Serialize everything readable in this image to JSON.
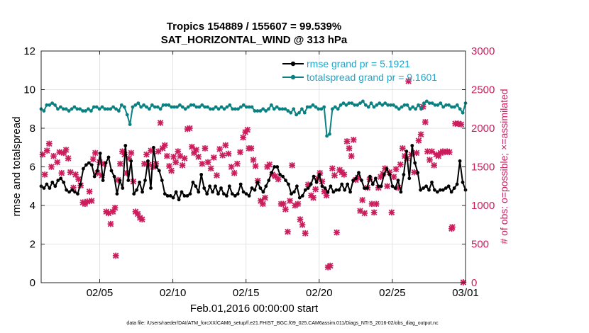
{
  "chart_data": {
    "type": "line",
    "title_line1": "Tropics 154889 / 155607 = 99.539%",
    "title_line2": "SAT_HORIZONTAL_WIND @ 313 hPa",
    "xlabel": "Feb.01,2016 00:00:00 start",
    "ylabel_left": "rmse and totalspread",
    "ylabel_right": "# of obs: o=possible; ×=assimilated",
    "footer": "data file: /Users/raeder/DAI/ATM_forcXX/CAM6_setup/f.e21.FHIST_BGC.f09_025.CAM6assim.011/Diags_NTrS_2016-02/obs_diag_output.nc",
    "xlim_days": [
      1,
      30
    ],
    "x_ticks": [
      {
        "day": 5,
        "label": "02/05"
      },
      {
        "day": 10,
        "label": "02/10"
      },
      {
        "day": 15,
        "label": "02/15"
      },
      {
        "day": 20,
        "label": "02/20"
      },
      {
        "day": 25,
        "label": "02/25"
      },
      {
        "day": 30,
        "label": "03/01"
      }
    ],
    "ylim_left": [
      0,
      12
    ],
    "y_ticks_left": [
      "0",
      "2",
      "4",
      "6",
      "8",
      "10",
      "12"
    ],
    "ylim_right": [
      0,
      3000
    ],
    "y_ticks_right": [
      "0",
      "500",
      "1000",
      "1500",
      "2000",
      "2500",
      "3000"
    ],
    "colors": {
      "rmse": "#000000",
      "spread": "#0a8080",
      "obs": "#cc1c5c",
      "legend_text": "#1ea6c8"
    },
    "legend": [
      {
        "name": "rmse grand pr = 5.1921",
        "series": "rmse"
      },
      {
        "name": "totalspread grand pr = 9.1601",
        "series": "spread"
      }
    ],
    "rmse": [
      5.0,
      4.9,
      5.1,
      4.9,
      5.2,
      5.0,
      5.3,
      5.4,
      5.2,
      4.8,
      4.7,
      4.8,
      4.7,
      4.6,
      5.1,
      5.9,
      6.1,
      6.2,
      6.1,
      5.5,
      5.8,
      6.7,
      5.3,
      6.2,
      6.5,
      5.8,
      5.5,
      4.6,
      5.3,
      4.9,
      7.1,
      5.3,
      6.3,
      4.6,
      4.8,
      5.2,
      4.7,
      5.3,
      6.3,
      4.9,
      7.0,
      6.0,
      5.8,
      5.3,
      4.6,
      4.5,
      4.5,
      4.4,
      4.7,
      4.3,
      4.7,
      4.5,
      4.5,
      4.6,
      5.2,
      5.0,
      4.7,
      5.6,
      4.9,
      4.6,
      5.0,
      4.7,
      5.0,
      4.6,
      4.9,
      4.6,
      4.5,
      5.0,
      4.6,
      4.5,
      4.6,
      5.1,
      4.7,
      4.6,
      4.5,
      4.9,
      4.8,
      5.2,
      4.9,
      4.7,
      5.0,
      5.3,
      5.7,
      6.0,
      6.0,
      5.6,
      5.5,
      5.3,
      5.1,
      4.6,
      4.7,
      5.0,
      4.4,
      4.5,
      4.8,
      4.9,
      5.1,
      5.5,
      5.2,
      5.6,
      5.0,
      4.9,
      4.7,
      5.0,
      4.7,
      4.8,
      4.8,
      5.1,
      4.8,
      5.1,
      4.7,
      5.3,
      5.4,
      5.7,
      5.3,
      4.9,
      4.9,
      5.5,
      5.1,
      5.4,
      5.0,
      5.0,
      5.6,
      5.9,
      5.6,
      5.0,
      4.9,
      5.3,
      4.7,
      5.6,
      6.8,
      5.4,
      7.1,
      6.2,
      5.7,
      4.8,
      4.9,
      5.0,
      4.8,
      5.2,
      4.8,
      4.7,
      4.8,
      4.8,
      4.9,
      5.0,
      4.7,
      4.9,
      5.1,
      6.3,
      5.2,
      4.8
    ],
    "spread": [
      9.0,
      8.9,
      9.2,
      9.2,
      9.3,
      9.2,
      9.0,
      9.1,
      9.0,
      9.0,
      8.9,
      9.0,
      9.1,
      9.0,
      9.0,
      8.9,
      8.9,
      9.0,
      8.9,
      9.1,
      9.1,
      9.0,
      9.1,
      9.0,
      9.0,
      9.0,
      9.1,
      9.0,
      8.9,
      9.2,
      9.1,
      8.7,
      8.2,
      9.1,
      9.2,
      9.3,
      9.1,
      9.2,
      9.1,
      9.0,
      9.2,
      9.1,
      9.1,
      9.0,
      9.2,
      9.2,
      9.2,
      9.1,
      9.1,
      9.1,
      9.2,
      9.1,
      9.0,
      9.1,
      9.2,
      9.2,
      9.1,
      9.1,
      9.2,
      9.1,
      9.1,
      9.0,
      9.0,
      9.1,
      9.0,
      9.1,
      9.0,
      9.1,
      9.2,
      9.0,
      9.0,
      9.0,
      9.1,
      9.2,
      9.1,
      9.1,
      9.1,
      8.9,
      8.9,
      8.9,
      9.0,
      8.9,
      9.0,
      9.2,
      9.0,
      9.1,
      9.0,
      9.0,
      9.0,
      8.9,
      8.8,
      9.0,
      8.7,
      8.8,
      9.0,
      8.8,
      9.1,
      9.1,
      9.2,
      9.1,
      9.0,
      9.0,
      9.1,
      7.6,
      7.7,
      9.0,
      9.1,
      9.0,
      9.2,
      9.3,
      9.2,
      9.3,
      9.3,
      9.2,
      9.2,
      9.3,
      9.4,
      9.2,
      9.1,
      9.3,
      9.1,
      9.2,
      9.3,
      9.2,
      9.3,
      9.2,
      9.2,
      9.2,
      9.1,
      9.0,
      9.1,
      9.2,
      9.2,
      9.0,
      9.1,
      9.0,
      9.2,
      9.0,
      9.3,
      9.4,
      9.3,
      9.3,
      9.2,
      9.2,
      9.3,
      9.1,
      9.2,
      9.2,
      9.1,
      9.1,
      9.2,
      9.0,
      8.8,
      9.3
    ],
    "obs_assimilated": [
      {
        "day": 1.1,
        "n": 1660
      },
      {
        "day": 1.25,
        "n": 1400
      },
      {
        "day": 1.4,
        "n": 1710
      },
      {
        "day": 1.55,
        "n": 1800
      },
      {
        "day": 1.7,
        "n": 1500
      },
      {
        "day": 1.85,
        "n": 1640
      },
      {
        "day": 2.1,
        "n": 1560
      },
      {
        "day": 2.25,
        "n": 1690
      },
      {
        "day": 2.4,
        "n": 1420
      },
      {
        "day": 2.55,
        "n": 1680
      },
      {
        "day": 2.7,
        "n": 1720
      },
      {
        "day": 2.85,
        "n": 1610
      },
      {
        "day": 3.0,
        "n": 1430
      },
      {
        "day": 3.2,
        "n": 1230
      },
      {
        "day": 3.35,
        "n": 1400
      },
      {
        "day": 3.55,
        "n": 1340
      },
      {
        "day": 3.7,
        "n": 1260
      },
      {
        "day": 3.85,
        "n": 1040
      },
      {
        "day": 4.0,
        "n": 1020
      },
      {
        "day": 4.15,
        "n": 1050
      },
      {
        "day": 4.3,
        "n": 1180
      },
      {
        "day": 4.45,
        "n": 1060
      },
      {
        "day": 4.55,
        "n": 1600
      },
      {
        "day": 4.7,
        "n": 1680
      },
      {
        "day": 4.85,
        "n": 1420
      },
      {
        "day": 5.0,
        "n": 1560
      },
      {
        "day": 5.15,
        "n": 1390
      },
      {
        "day": 5.3,
        "n": 1540
      },
      {
        "day": 5.45,
        "n": 920
      },
      {
        "day": 5.6,
        "n": 900
      },
      {
        "day": 5.75,
        "n": 760
      },
      {
        "day": 5.9,
        "n": 920
      },
      {
        "day": 6.05,
        "n": 970
      },
      {
        "day": 6.1,
        "n": 350
      },
      {
        "day": 6.25,
        "n": 1330
      },
      {
        "day": 6.4,
        "n": 1540
      },
      {
        "day": 6.55,
        "n": 1700
      },
      {
        "day": 6.7,
        "n": 1660
      },
      {
        "day": 6.85,
        "n": 1420
      },
      {
        "day": 7.0,
        "n": 1610
      },
      {
        "day": 7.15,
        "n": 1680
      },
      {
        "day": 7.3,
        "n": 1310
      },
      {
        "day": 7.45,
        "n": 920
      },
      {
        "day": 7.6,
        "n": 890
      },
      {
        "day": 7.75,
        "n": 840
      },
      {
        "day": 7.9,
        "n": 820
      },
      {
        "day": 8.05,
        "n": 1540
      },
      {
        "day": 8.2,
        "n": 1660
      },
      {
        "day": 8.35,
        "n": 1530
      },
      {
        "day": 8.5,
        "n": 1710
      },
      {
        "day": 8.65,
        "n": 1500
      },
      {
        "day": 8.85,
        "n": 1540
      },
      {
        "day": 9.0,
        "n": 1700
      },
      {
        "day": 9.15,
        "n": 2070
      },
      {
        "day": 9.3,
        "n": 1740
      },
      {
        "day": 9.45,
        "n": 1780
      },
      {
        "day": 9.6,
        "n": 1640
      },
      {
        "day": 9.75,
        "n": 1510
      },
      {
        "day": 9.9,
        "n": 1450
      },
      {
        "day": 10.05,
        "n": 1630
      },
      {
        "day": 10.2,
        "n": 1560
      },
      {
        "day": 10.35,
        "n": 1700
      },
      {
        "day": 10.5,
        "n": 1640
      },
      {
        "day": 10.65,
        "n": 1520
      },
      {
        "day": 10.8,
        "n": 1610
      },
      {
        "day": 11.0,
        "n": 1990
      },
      {
        "day": 11.15,
        "n": 2000
      },
      {
        "day": 11.3,
        "n": 1760
      },
      {
        "day": 11.45,
        "n": 1680
      },
      {
        "day": 11.6,
        "n": 1720
      },
      {
        "day": 11.75,
        "n": 1630
      },
      {
        "day": 12.0,
        "n": 1540
      },
      {
        "day": 12.2,
        "n": 1740
      },
      {
        "day": 12.4,
        "n": 1560
      },
      {
        "day": 12.6,
        "n": 1480
      },
      {
        "day": 12.8,
        "n": 1620
      },
      {
        "day": 13.0,
        "n": 1390
      },
      {
        "day": 13.2,
        "n": 1730
      },
      {
        "day": 13.4,
        "n": 1650
      },
      {
        "day": 13.6,
        "n": 1780
      },
      {
        "day": 13.8,
        "n": 1670
      },
      {
        "day": 14.0,
        "n": 1500
      },
      {
        "day": 14.2,
        "n": 1420
      },
      {
        "day": 14.4,
        "n": 1540
      },
      {
        "day": 14.6,
        "n": 1690
      },
      {
        "day": 14.8,
        "n": 1880
      },
      {
        "day": 14.95,
        "n": 1950
      },
      {
        "day": 15.1,
        "n": 1980
      },
      {
        "day": 15.2,
        "n": 1740
      },
      {
        "day": 15.35,
        "n": 1740
      },
      {
        "day": 15.5,
        "n": 1590
      },
      {
        "day": 15.65,
        "n": 1510
      },
      {
        "day": 15.8,
        "n": 1320
      },
      {
        "day": 16.0,
        "n": 1060
      },
      {
        "day": 16.15,
        "n": 1020
      },
      {
        "day": 16.3,
        "n": 1100
      },
      {
        "day": 16.45,
        "n": 1500
      },
      {
        "day": 16.6,
        "n": 1530
      },
      {
        "day": 16.8,
        "n": 1400
      },
      {
        "day": 17.0,
        "n": 1380
      },
      {
        "day": 17.2,
        "n": 1340
      },
      {
        "day": 17.4,
        "n": 1020
      },
      {
        "day": 17.55,
        "n": 1020
      },
      {
        "day": 17.7,
        "n": 950
      },
      {
        "day": 17.85,
        "n": 660
      },
      {
        "day": 18.0,
        "n": 1060
      },
      {
        "day": 18.15,
        "n": 1520
      },
      {
        "day": 18.35,
        "n": 1000
      },
      {
        "day": 18.55,
        "n": 1020
      },
      {
        "day": 18.7,
        "n": 820
      },
      {
        "day": 18.85,
        "n": 750
      },
      {
        "day": 19.05,
        "n": 640
      },
      {
        "day": 19.25,
        "n": 1270
      },
      {
        "day": 19.45,
        "n": 1130
      },
      {
        "day": 19.6,
        "n": 1100
      },
      {
        "day": 19.75,
        "n": 1210
      },
      {
        "day": 19.9,
        "n": 1350
      },
      {
        "day": 20.05,
        "n": 1420
      },
      {
        "day": 20.2,
        "n": 1310
      },
      {
        "day": 20.35,
        "n": 1180
      },
      {
        "day": 20.5,
        "n": 1130
      },
      {
        "day": 20.6,
        "n": 200
      },
      {
        "day": 20.75,
        "n": 220
      },
      {
        "day": 20.9,
        "n": 1480
      },
      {
        "day": 21.05,
        "n": 1390
      },
      {
        "day": 21.2,
        "n": 650
      },
      {
        "day": 21.4,
        "n": 1460
      },
      {
        "day": 21.55,
        "n": 1430
      },
      {
        "day": 21.7,
        "n": 1400
      },
      {
        "day": 21.9,
        "n": 1830
      },
      {
        "day": 22.05,
        "n": 1740
      },
      {
        "day": 22.2,
        "n": 1640
      },
      {
        "day": 22.35,
        "n": 1850
      },
      {
        "day": 22.5,
        "n": 1330
      },
      {
        "day": 22.65,
        "n": 1360
      },
      {
        "day": 22.8,
        "n": 930
      },
      {
        "day": 22.95,
        "n": 1070
      },
      {
        "day": 23.1,
        "n": 900
      },
      {
        "day": 23.3,
        "n": 1230
      },
      {
        "day": 23.45,
        "n": 1340
      },
      {
        "day": 23.6,
        "n": 1020
      },
      {
        "day": 23.75,
        "n": 910
      },
      {
        "day": 23.9,
        "n": 1020
      },
      {
        "day": 24.05,
        "n": 1230
      },
      {
        "day": 24.2,
        "n": 1370
      },
      {
        "day": 24.35,
        "n": 1410
      },
      {
        "day": 24.5,
        "n": 1480
      },
      {
        "day": 24.65,
        "n": 1250
      },
      {
        "day": 24.8,
        "n": 1430
      },
      {
        "day": 24.95,
        "n": 910
      },
      {
        "day": 25.1,
        "n": 1370
      },
      {
        "day": 25.25,
        "n": 1470
      },
      {
        "day": 25.4,
        "n": 1230
      },
      {
        "day": 25.55,
        "n": 1530
      },
      {
        "day": 25.7,
        "n": 1740
      },
      {
        "day": 25.85,
        "n": 1640
      },
      {
        "day": 26.0,
        "n": 1610
      },
      {
        "day": 26.1,
        "n": 2610
      },
      {
        "day": 26.3,
        "n": 1660
      },
      {
        "day": 26.5,
        "n": 1430
      },
      {
        "day": 26.65,
        "n": 1680
      },
      {
        "day": 26.8,
        "n": 1840
      },
      {
        "day": 26.95,
        "n": 1920
      },
      {
        "day": 27.1,
        "n": 2280
      },
      {
        "day": 27.25,
        "n": 2080
      },
      {
        "day": 27.4,
        "n": 1700
      },
      {
        "day": 27.55,
        "n": 1590
      },
      {
        "day": 27.7,
        "n": 1700
      },
      {
        "day": 27.85,
        "n": 1520
      },
      {
        "day": 28.0,
        "n": 1660
      },
      {
        "day": 28.15,
        "n": 1640
      },
      {
        "day": 28.3,
        "n": 1680
      },
      {
        "day": 28.45,
        "n": 1700
      },
      {
        "day": 28.6,
        "n": 1690
      },
      {
        "day": 28.75,
        "n": 1700
      },
      {
        "day": 28.9,
        "n": 1690
      },
      {
        "day": 29.05,
        "n": 700
      },
      {
        "day": 29.1,
        "n": 720
      },
      {
        "day": 29.3,
        "n": 2060
      },
      {
        "day": 29.5,
        "n": 2060
      },
      {
        "day": 29.7,
        "n": 2050
      },
      {
        "day": 29.85,
        "n": 5
      }
    ]
  }
}
